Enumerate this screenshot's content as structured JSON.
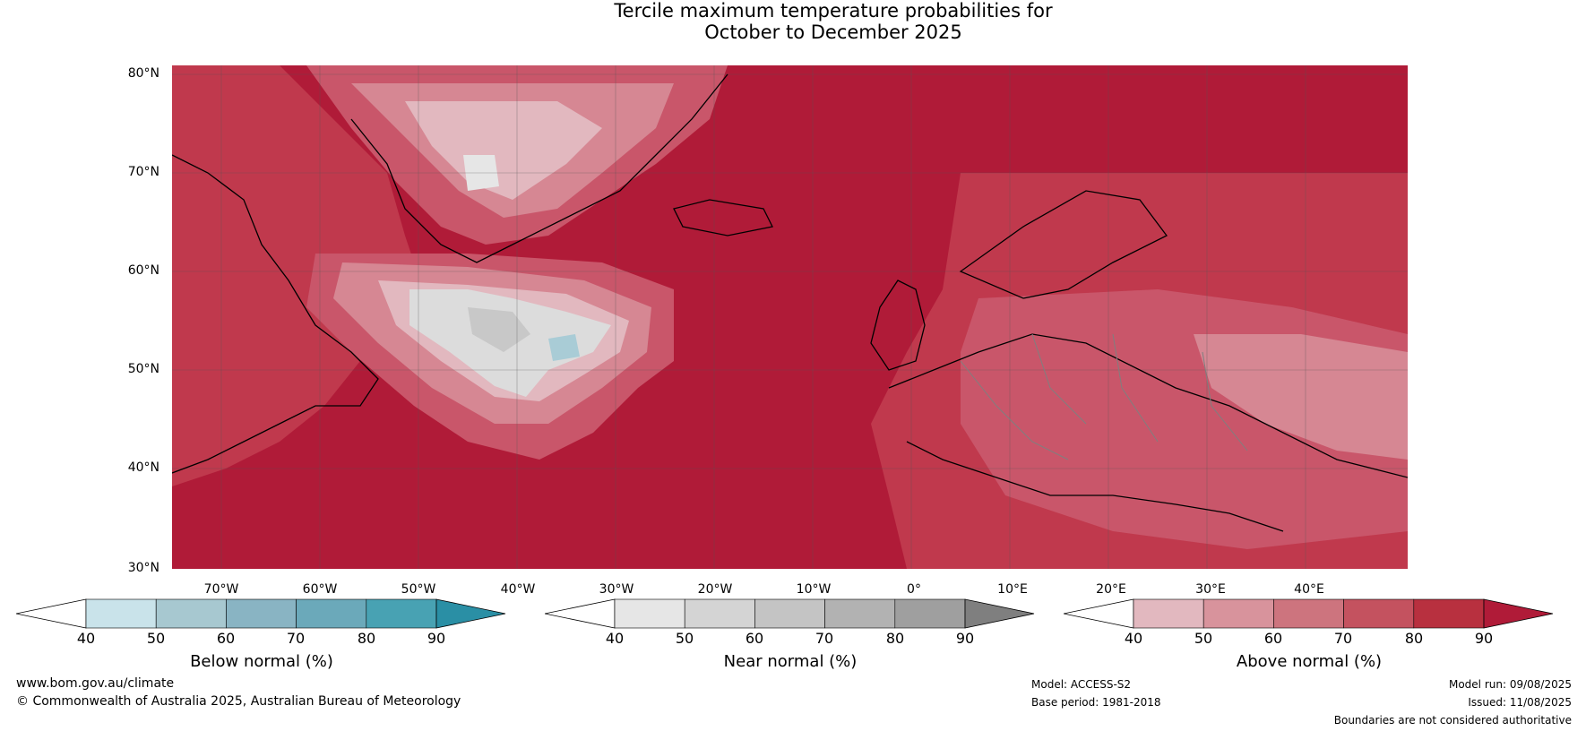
{
  "title_line1": "Tercile maximum temperature probabilities for",
  "title_line2": "October to December 2025",
  "lat_labels": [
    "80°N",
    "70°N",
    "60°N",
    "50°N",
    "40°N",
    "30°N"
  ],
  "lon_labels": [
    "70°W",
    "60°W",
    "50°W",
    "40°W",
    "30°W",
    "20°W",
    "10°W",
    "0°",
    "10°E",
    "20°E",
    "30°E",
    "40°E"
  ],
  "colorbars": [
    {
      "label": "Below normal (%)",
      "ticks": [
        "40",
        "50",
        "60",
        "70",
        "80",
        "90"
      ],
      "colors": [
        "#c9e3ea",
        "#a7c8d0",
        "#89b4c3",
        "#6ba9ba",
        "#48a2b3",
        "#2a8fa5"
      ],
      "under": "#ffffff"
    },
    {
      "label": "Near normal (%)",
      "ticks": [
        "40",
        "50",
        "60",
        "70",
        "80",
        "90"
      ],
      "colors": [
        "#e6e6e6",
        "#d4d4d4",
        "#c4c4c4",
        "#b2b2b2",
        "#9f9f9f",
        "#7f7f7f"
      ],
      "under": "#ffffff"
    },
    {
      "label": "Above normal (%)",
      "ticks": [
        "40",
        "50",
        "60",
        "70",
        "80",
        "90"
      ],
      "colors": [
        "#e2b8bf",
        "#d8939c",
        "#cd747e",
        "#c4525f",
        "#b8303f",
        "#b01b38"
      ],
      "under": "#ffffff"
    }
  ],
  "footer": {
    "website": "www.bom.gov.au/climate",
    "copyright": "© Commonwealth of Australia 2025, Australian Bureau of Meteorology",
    "model": "Model: ACCESS-S2",
    "base_period": "Base period: 1981-2018",
    "model_run": "Model run: 09/08/2025",
    "issued": "Issued: 11/08/2025",
    "disclaimer": "Boundaries are not considered authoritative"
  },
  "colors": {
    "ocean_high": "#b01b38",
    "above_80": "#c0394d",
    "above_70": "#c9566a",
    "above_60": "#d68793",
    "above_50": "#e2b8bf",
    "near_50": "#dcdcdc",
    "near_60": "#c8c8c8",
    "below_50": "#a9ccd6",
    "coast": "#000000",
    "border": "#7f7f7f",
    "grid": "#555555"
  }
}
